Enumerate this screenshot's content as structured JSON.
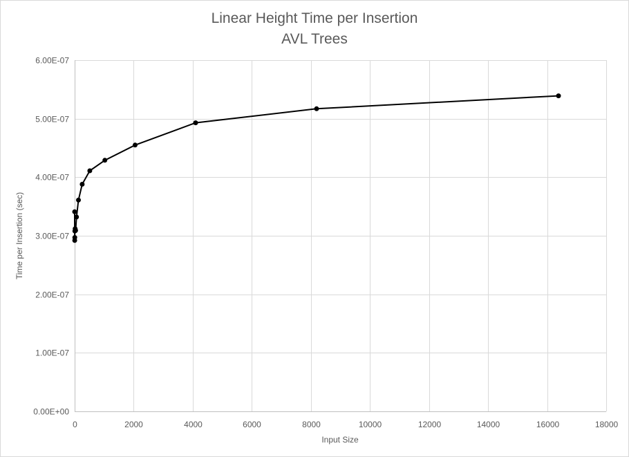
{
  "chart_data": {
    "type": "line",
    "title": "Linear Height Time per Insertion",
    "subtitle": "AVL Trees",
    "xlabel": "Input Size",
    "ylabel": "Time per Insertion (sec)",
    "xlim": [
      0,
      18000
    ],
    "ylim": [
      0,
      6e-07
    ],
    "x_ticks": [
      0,
      2000,
      4000,
      6000,
      8000,
      10000,
      12000,
      14000,
      16000,
      18000
    ],
    "x_tick_labels": [
      "0",
      "2000",
      "4000",
      "6000",
      "8000",
      "10000",
      "12000",
      "14000",
      "16000",
      "18000"
    ],
    "y_ticks": [
      0,
      1e-07,
      2e-07,
      3e-07,
      4e-07,
      5e-07,
      6e-07
    ],
    "y_tick_labels": [
      "0.00E+00",
      "1.00E-07",
      "2.00E-07",
      "3.00E-07",
      "4.00E-07",
      "5.00E-07",
      "6.00E-07"
    ],
    "grid": true,
    "legend": "none",
    "line_color": "#000000",
    "series": [
      {
        "x": [
          1,
          2,
          4,
          8,
          16,
          32,
          64,
          128,
          256,
          512,
          1024,
          2048,
          4096,
          8192,
          16384
        ],
        "y": [
          3.41e-07,
          2.92e-07,
          2.97e-07,
          3.08e-07,
          3.12e-07,
          3.09e-07,
          3.32e-07,
          3.61e-07,
          3.88e-07,
          4.11e-07,
          4.29e-07,
          4.55e-07,
          4.93e-07,
          5.17e-07,
          5.39e-07
        ]
      }
    ]
  }
}
